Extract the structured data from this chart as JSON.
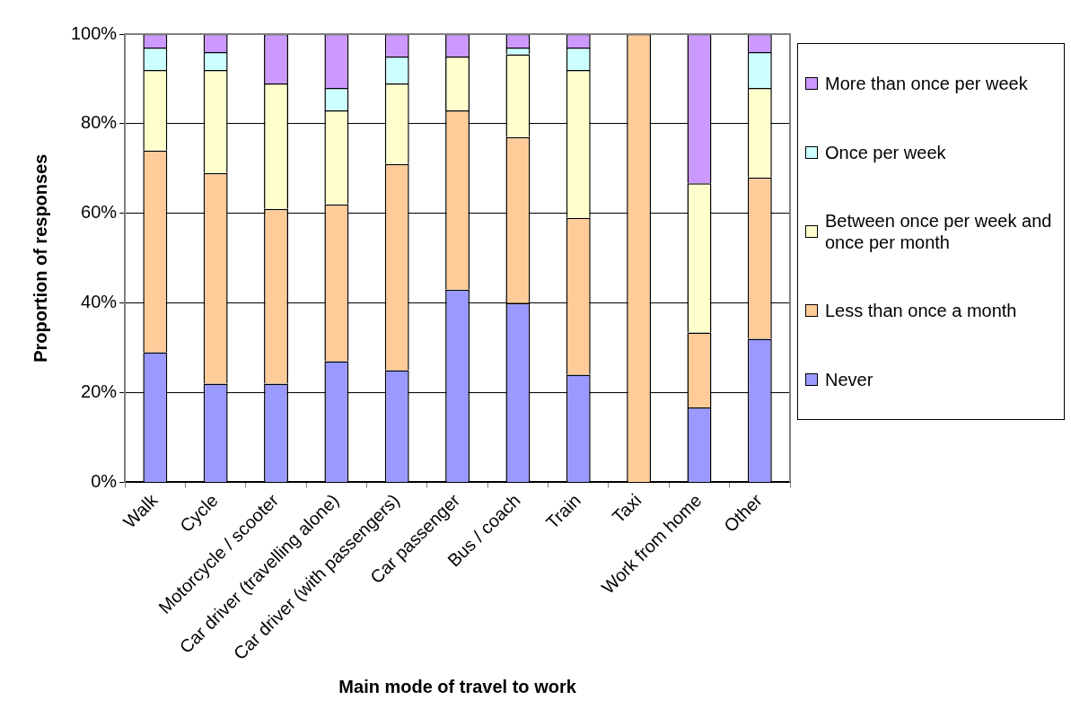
{
  "chart_data": {
    "type": "bar",
    "stacked": true,
    "xlabel": "Main mode of travel to work",
    "ylabel": "Proportion of responses",
    "categories": [
      "Walk",
      "Cycle",
      "Motorcycle / scooter",
      "Car driver (travelling alone)",
      "Car driver (with passengers)",
      "Car passenger",
      "Bus / coach",
      "Train",
      "Taxi",
      "Work from home",
      "Other"
    ],
    "series": [
      {
        "name": "Never",
        "color": "#9999ff",
        "values": [
          29,
          22,
          22,
          27,
          25,
          43,
          40,
          24,
          0,
          16.7,
          32
        ]
      },
      {
        "name": "Less than once a month",
        "color": "#ffcc99",
        "values": [
          45,
          47,
          39,
          35,
          46,
          40,
          37,
          35,
          100,
          16.7,
          36
        ]
      },
      {
        "name": "Between once per week and once per month",
        "color": "#ffffcc",
        "values": [
          18,
          23,
          28,
          21,
          18,
          12,
          18.5,
          33,
          0,
          33.3,
          20
        ]
      },
      {
        "name": "Once per week",
        "color": "#ccffff",
        "values": [
          5,
          4,
          0,
          5,
          6,
          0,
          1.5,
          5,
          0,
          0,
          8
        ]
      },
      {
        "name": "More than once per week",
        "color": "#cc99ff",
        "values": [
          3,
          4,
          11,
          12,
          5,
          5,
          3,
          3,
          0,
          33.3,
          4
        ]
      }
    ],
    "ylim": [
      0,
      100
    ],
    "yticks": [
      {
        "value": 0,
        "label": "0%"
      },
      {
        "value": 20,
        "label": "20%"
      },
      {
        "value": 40,
        "label": "40%"
      },
      {
        "value": 60,
        "label": "60%"
      },
      {
        "value": 80,
        "label": "80%"
      },
      {
        "value": 100,
        "label": "100%"
      }
    ],
    "grid": "y",
    "legend": "right"
  }
}
